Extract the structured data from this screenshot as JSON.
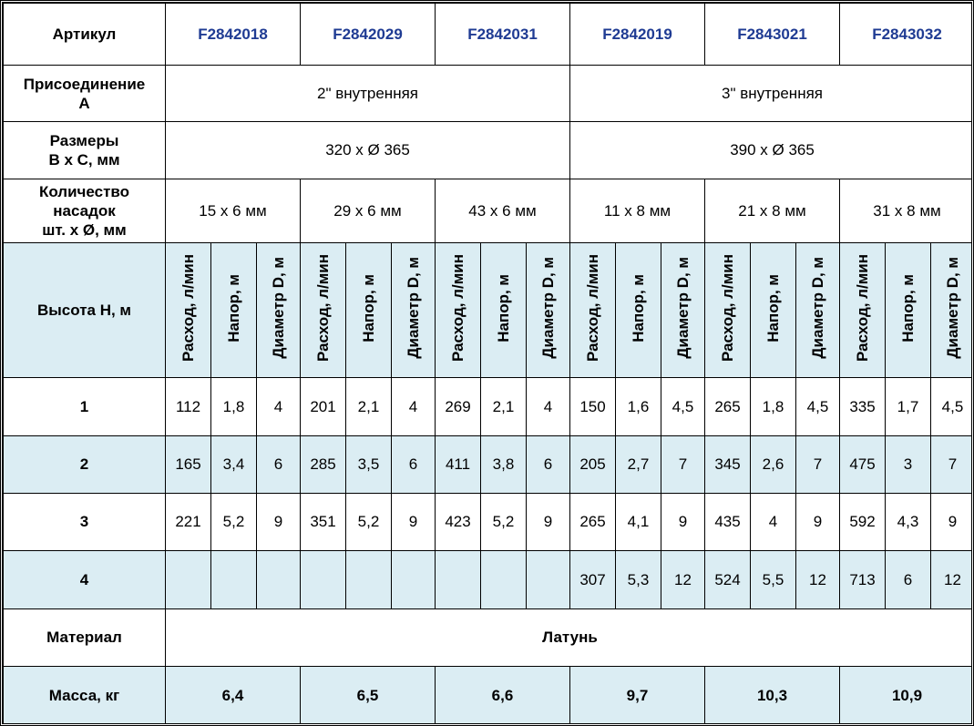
{
  "header_label": "Артикул",
  "articles": [
    "F2842018",
    "F2842029",
    "F2842031",
    "F2842019",
    "F2843021",
    "F2843032"
  ],
  "connection": {
    "label": "Присоединение А",
    "values": [
      "2\" внутренняя",
      "3\" внутренняя"
    ]
  },
  "dimensions": {
    "label": "Размеры B x C, мм",
    "values": [
      "320 x Ø 365",
      "390 x Ø 365"
    ]
  },
  "nozzles": {
    "label": "Количество насадок шт. x Ø, мм",
    "values": [
      "15 x 6 мм",
      "29 x 6 мм",
      "43 x 6 мм",
      "11 x 8 мм",
      "21 x 8 мм",
      "31 x 8 мм"
    ]
  },
  "height_label": "Высота H, м",
  "sub_headers": [
    "Расход, л/мин",
    "Напор, м",
    "Диаметр D, м"
  ],
  "rows": [
    {
      "h": "1",
      "values": [
        "112",
        "1,8",
        "4",
        "201",
        "2,1",
        "4",
        "269",
        "2,1",
        "4",
        "150",
        "1,6",
        "4,5",
        "265",
        "1,8",
        "4,5",
        "335",
        "1,7",
        "4,5"
      ]
    },
    {
      "h": "2",
      "values": [
        "165",
        "3,4",
        "6",
        "285",
        "3,5",
        "6",
        "411",
        "3,8",
        "6",
        "205",
        "2,7",
        "7",
        "345",
        "2,6",
        "7",
        "475",
        "3",
        "7"
      ]
    },
    {
      "h": "3",
      "values": [
        "221",
        "5,2",
        "9",
        "351",
        "5,2",
        "9",
        "423",
        "5,2",
        "9",
        "265",
        "4,1",
        "9",
        "435",
        "4",
        "9",
        "592",
        "4,3",
        "9"
      ]
    },
    {
      "h": "4",
      "values": [
        "",
        "",
        "",
        "",
        "",
        "",
        "",
        "",
        "",
        "307",
        "5,3",
        "12",
        "524",
        "5,5",
        "12",
        "713",
        "6",
        "12"
      ]
    }
  ],
  "material": {
    "label": "Материал",
    "value": "Латунь"
  },
  "mass": {
    "label": "Масса, кг",
    "values": [
      "6,4",
      "6,5",
      "6,6",
      "9,7",
      "10,3",
      "10,9"
    ]
  }
}
